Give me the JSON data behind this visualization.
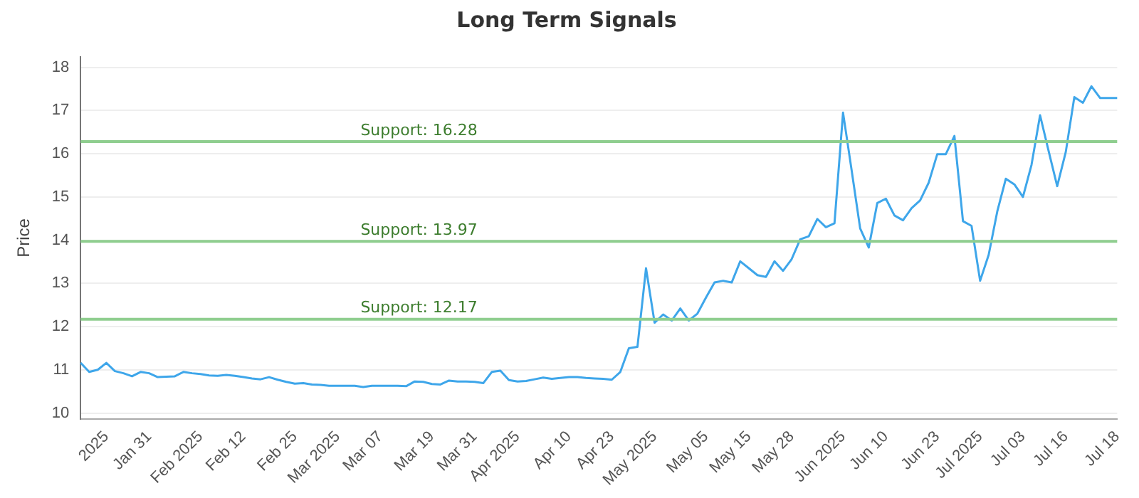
{
  "chart_data": {
    "type": "line",
    "title": "Long Term Signals",
    "ylabel": "Price",
    "categories": [
      null,
      null,
      null,
      "2025",
      null,
      null,
      null,
      null,
      "Jan 31",
      null,
      null,
      null,
      null,
      null,
      "Feb 2025",
      null,
      null,
      null,
      null,
      "Feb 12",
      null,
      null,
      null,
      null,
      null,
      "Feb 25",
      null,
      null,
      null,
      null,
      "Mar 2025",
      null,
      null,
      null,
      null,
      "Mar 07",
      null,
      null,
      null,
      null,
      null,
      "Mar 19",
      null,
      null,
      null,
      null,
      "Mar 31",
      null,
      null,
      null,
      null,
      "Apr 2025",
      null,
      null,
      null,
      null,
      null,
      "Apr 10",
      null,
      null,
      null,
      null,
      "Apr 23",
      null,
      null,
      null,
      null,
      "May 2025",
      null,
      null,
      null,
      null,
      null,
      "May 05",
      null,
      null,
      null,
      null,
      "May 15",
      null,
      null,
      null,
      null,
      "May 28",
      null,
      null,
      null,
      null,
      null,
      "Jun 2025",
      null,
      null,
      null,
      null,
      "Jun 10",
      null,
      null,
      null,
      null,
      null,
      "Jun 23",
      null,
      null,
      null,
      null,
      "Jul 2025",
      null,
      null,
      null,
      null,
      "Jul 03",
      null,
      null,
      null,
      null,
      "Jul 16",
      null,
      null,
      null,
      null,
      null,
      "Jul 18"
    ],
    "series": [
      {
        "color": "#3ea6ea",
        "values": [
          11.16,
          10.95,
          11.0,
          11.16,
          10.97,
          10.92,
          10.85,
          10.95,
          10.92,
          10.83,
          10.84,
          10.85,
          10.95,
          10.92,
          10.9,
          10.87,
          10.86,
          10.88,
          10.86,
          10.83,
          10.8,
          10.78,
          10.83,
          10.77,
          10.72,
          10.68,
          10.69,
          10.66,
          10.65,
          10.63,
          10.63,
          10.63,
          10.63,
          10.6,
          10.63,
          10.63,
          10.63,
          10.63,
          10.62,
          10.73,
          10.72,
          10.67,
          10.66,
          10.75,
          10.73,
          10.73,
          10.72,
          10.69,
          10.95,
          10.98,
          10.76,
          10.73,
          10.74,
          10.78,
          10.82,
          10.79,
          10.81,
          10.83,
          10.83,
          10.81,
          10.8,
          10.79,
          10.77,
          10.95,
          11.5,
          11.53,
          13.35,
          12.09,
          12.28,
          12.14,
          12.42,
          12.14,
          12.3,
          12.67,
          13.02,
          13.06,
          13.02,
          13.51,
          13.35,
          13.19,
          13.15,
          13.51,
          13.29,
          13.56,
          14.02,
          14.09,
          14.49,
          14.3,
          14.39,
          16.95,
          15.62,
          14.27,
          13.83,
          14.86,
          14.96,
          14.57,
          14.46,
          14.74,
          14.92,
          15.33,
          15.99,
          15.99,
          16.41,
          14.44,
          14.33,
          13.06,
          13.66,
          14.66,
          15.42,
          15.29,
          15.0,
          15.74,
          16.89,
          16.06,
          15.25,
          16.04,
          17.31,
          17.18,
          17.56,
          17.29,
          17.29,
          17.29
        ]
      }
    ],
    "ylim": [
      9.86,
      18.24
    ],
    "yticks": [
      10,
      11,
      12,
      13,
      14,
      15,
      16,
      17,
      18
    ],
    "grid": "y",
    "legend": false,
    "marker": "none",
    "line_style": "solid",
    "ref_lines": [
      {
        "axis": "y",
        "value": 16.28,
        "label": "Support: 16.28",
        "color": "#8fce8f"
      },
      {
        "axis": "y",
        "value": 13.97,
        "label": "Support: 13.97",
        "color": "#8fce8f"
      },
      {
        "axis": "y",
        "value": 12.17,
        "label": "Support: 12.17",
        "color": "#8fce8f"
      }
    ]
  }
}
